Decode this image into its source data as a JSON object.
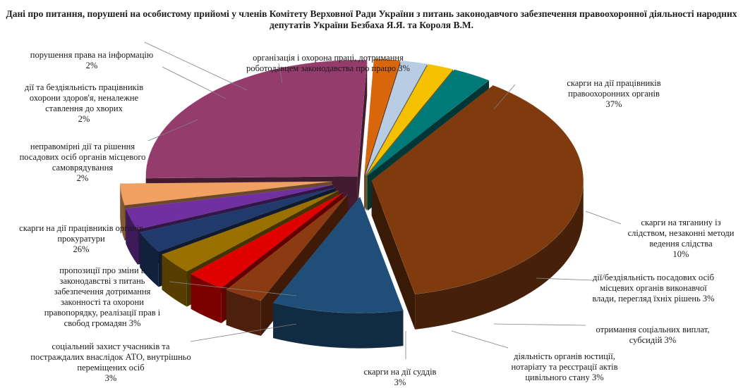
{
  "chart_data": {
    "type": "pie",
    "title": "Дані про питання, порушені на особистому прийомі у членів Комітету Верховної Ради України з питань законодавчого забезпечення правоохоронної діяльності народних депутатів України Безбаха Я.Я. та Короля В.М.",
    "slices": [
      {
        "label": "скарги на дії  працівників правоохоронних органів",
        "value": 37,
        "value_label": "37%",
        "color": "#7f3a0e",
        "exploded": false
      },
      {
        "label": "скарги на тяганину із слідством,  незаконні методи ведення слідства",
        "value": 10,
        "value_label": "10%",
        "color": "#1f4e79",
        "exploded": true
      },
      {
        "label": "дії/бездіяльність  посадових осіб місцевих органів виконавчої влади,  перегляд їхніх  рішень",
        "value": 3,
        "value_label": "3%",
        "color": "#8b3a12",
        "exploded": true
      },
      {
        "label": "отримання соціальних  виплат, субсидій",
        "value": 3,
        "value_label": "3%",
        "color": "#e00000",
        "exploded": true
      },
      {
        "label": "діяльність  органів юстиції, нотаріату та реєстрації актів цивільного  стану",
        "value": 3,
        "value_label": "3%",
        "color": "#9a7000",
        "exploded": true
      },
      {
        "label": "скарги на дії  суддів",
        "value": 3,
        "value_label": "3%",
        "color": "#1f3a6b",
        "exploded": true
      },
      {
        "label": "соціальний захист  учасників та постраждалих внаслідок АТО, внутрішньо  переміщених осіб",
        "value": 3,
        "value_label": "3%",
        "color": "#7030a0",
        "exploded": true
      },
      {
        "label": "пропозиції про зміни в законодавстві  з питань забезпечення дотримання законності та охорони правопорядку, реалізації  прав і свобод громадян",
        "value": 3,
        "value_label": "3%",
        "color": "#f0a060",
        "exploded": true
      },
      {
        "label": "скарги на дії  працівників органів прокуратури",
        "value": 26,
        "value_label": "26%",
        "color": "#943c6b",
        "exploded": false
      },
      {
        "label": "неправомірні дії та рішення посадових  осіб органів місцевого самоврядування",
        "value": 2,
        "value_label": "2%",
        "color": "#d9660a",
        "exploded": false
      },
      {
        "label": "дії  та бездіяльність  працівників охорони здоров'я, неналежне ставлення до хворих",
        "value": 2,
        "value_label": "2%",
        "color": "#b8cce4",
        "exploded": false
      },
      {
        "label": "порушення права на інформацію",
        "value": 2,
        "value_label": "2%",
        "color": "#f5c000",
        "exploded": false
      },
      {
        "label": "організація і охорона праці, дотримання роботодавцем законодавства  про працю",
        "value": 3,
        "value_label": "3%",
        "color": "#007a78",
        "exploded": false
      }
    ],
    "legend": "none",
    "style": "3d-exploded-pie"
  }
}
